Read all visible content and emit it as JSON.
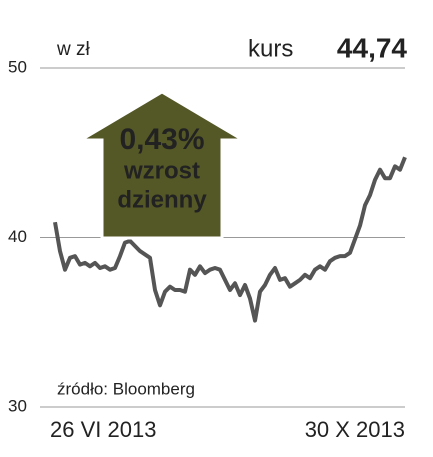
{
  "chart_data": {
    "type": "line",
    "unit_label": "w zł",
    "price_label": "kurs",
    "price": "44,74",
    "annotation": [
      "0,43%",
      "wzrost",
      "dzienny"
    ],
    "source": "źródło: Bloomberg",
    "categories": [
      "26 VI 2013",
      null,
      null,
      null,
      null,
      null,
      null,
      null,
      null,
      null,
      null,
      null,
      null,
      null,
      null,
      null,
      null,
      null,
      null,
      null,
      null,
      null,
      null,
      null,
      null,
      null,
      null,
      null,
      null,
      null,
      null,
      null,
      null,
      null,
      null,
      null,
      null,
      null,
      null,
      null,
      null,
      null,
      null,
      null,
      null,
      null,
      null,
      null,
      null,
      null,
      null,
      null,
      null,
      null,
      null,
      null,
      null,
      null,
      null,
      null,
      null,
      null,
      null,
      null,
      null,
      null,
      null,
      null,
      null,
      null,
      "30 X 2013"
    ],
    "series": [
      {
        "name": "kurs",
        "color": "#555555",
        "values": [
          40.9,
          39.2,
          38.1,
          38.8,
          38.9,
          38.4,
          38.5,
          38.3,
          38.5,
          38.2,
          38.3,
          38.1,
          38.2,
          38.9,
          39.7,
          39.8,
          39.5,
          39.2,
          39.0,
          38.8,
          36.9,
          36.0,
          36.8,
          37.1,
          36.9,
          36.9,
          36.8,
          38.1,
          37.8,
          38.3,
          37.9,
          38.1,
          38.2,
          38.1,
          37.5,
          36.9,
          37.3,
          36.6,
          37.2,
          36.4,
          35.1,
          36.8,
          37.2,
          37.8,
          38.2,
          37.5,
          37.6,
          37.1,
          37.3,
          37.5,
          37.8,
          37.6,
          38.1,
          38.3,
          38.1,
          38.6,
          38.8,
          38.9,
          38.9,
          39.1,
          39.9,
          40.7,
          41.9,
          42.5,
          43.4,
          44.0,
          43.5,
          43.5,
          44.2,
          44.0,
          44.74
        ]
      }
    ],
    "ylim": [
      30,
      50
    ],
    "yticks": [
      30,
      40,
      50
    ],
    "grid": true,
    "annotation_color": "#545726"
  }
}
